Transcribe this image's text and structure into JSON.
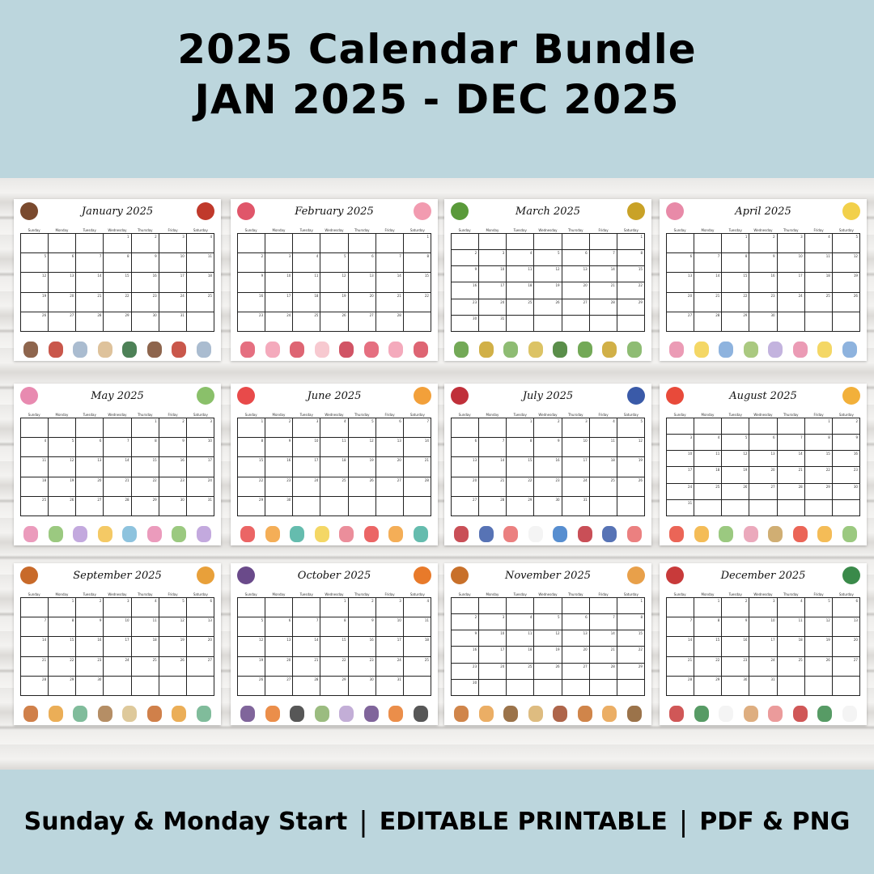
{
  "header": {
    "line1": "2025 Calendar Bundle",
    "line2": "JAN 2025 - DEC 2025"
  },
  "footer": {
    "item1": "Sunday & Monday Start",
    "item2": "EDITABLE PRINTABLE",
    "item3": "PDF & PNG",
    "separator": "|"
  },
  "year": 2025,
  "weekdays": [
    "Sunday",
    "Monday",
    "Tuesday",
    "Wednesday",
    "Thursday",
    "Friday",
    "Saturday"
  ],
  "months": [
    {
      "title": "January 2025",
      "colors": [
        "#7a4a2e",
        "#c0392b",
        "#9bb0c8",
        "#d8b78a",
        "#2e6b3a"
      ]
    },
    {
      "title": "February 2025",
      "colors": [
        "#e0566a",
        "#f29bb0",
        "#d84a5a",
        "#f6c0c8",
        "#c9364a"
      ]
    },
    {
      "title": "March 2025",
      "colors": [
        "#5a9a3a",
        "#c9a227",
        "#7ab05a",
        "#d6b84a",
        "#3d7a2a"
      ]
    },
    {
      "title": "April 2025",
      "colors": [
        "#e88aa8",
        "#f2d04a",
        "#7aa6d8",
        "#9bc06a",
        "#b8a6d8"
      ]
    },
    {
      "title": "May 2025",
      "colors": [
        "#e88ab0",
        "#8ac06a",
        "#b89ad8",
        "#f2c04a",
        "#7ab8d8"
      ]
    },
    {
      "title": "June 2025",
      "colors": [
        "#e84a4a",
        "#f2a03a",
        "#4ab0a0",
        "#f2d04a",
        "#e87a8a"
      ]
    },
    {
      "title": "July 2025",
      "colors": [
        "#c0303a",
        "#3a5aa8",
        "#e86a6a",
        "#f2f2f2",
        "#3a7ac8"
      ]
    },
    {
      "title": "August 2025",
      "colors": [
        "#e84a3a",
        "#f2b03a",
        "#8ac06a",
        "#e89ab0",
        "#c8a05a"
      ]
    },
    {
      "title": "September 2025",
      "colors": [
        "#c86a2a",
        "#e8a03a",
        "#6ab08a",
        "#a87a4a",
        "#d8c08a"
      ]
    },
    {
      "title": "October 2025",
      "colors": [
        "#6a4a8a",
        "#e87a2a",
        "#3a3a3a",
        "#8ab06a",
        "#b8a0d0"
      ]
    },
    {
      "title": "November 2025",
      "colors": [
        "#c8702a",
        "#e8a04a",
        "#8a5a2a",
        "#d8b06a",
        "#a04a2a"
      ]
    },
    {
      "title": "December 2025",
      "colors": [
        "#c83a3a",
        "#3a8a4a",
        "#f2f2f2",
        "#d8a06a",
        "#e88a8a"
      ]
    }
  ]
}
